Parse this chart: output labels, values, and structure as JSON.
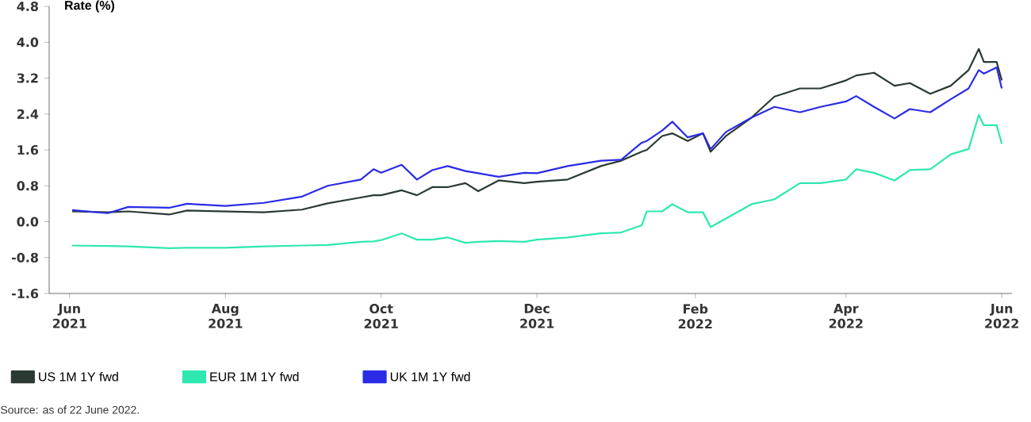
{
  "chart_data": {
    "type": "line",
    "ylabel": "Rate (%)",
    "x": [
      "2021-06-23",
      "2021-07-07",
      "2021-07-15",
      "2021-07-31",
      "2021-08-07",
      "2021-08-22",
      "2021-09-06",
      "2021-09-21",
      "2021-10-01",
      "2021-10-14",
      "2021-10-19",
      "2021-10-22",
      "2021-10-30",
      "2021-11-05",
      "2021-11-11",
      "2021-11-17",
      "2021-11-24",
      "2021-11-29",
      "2021-12-07",
      "2021-12-17",
      "2021-12-22",
      "2022-01-03",
      "2022-01-16",
      "2022-01-24",
      "2022-02-01",
      "2022-02-03",
      "2022-02-09",
      "2022-02-13",
      "2022-02-19",
      "2022-02-25",
      "2022-02-28",
      "2022-03-06",
      "2022-03-16",
      "2022-03-25",
      "2022-04-04",
      "2022-04-12",
      "2022-04-22",
      "2022-04-26",
      "2022-05-03",
      "2022-05-11",
      "2022-05-17",
      "2022-05-25",
      "2022-06-02",
      "2022-06-09",
      "2022-06-13",
      "2022-06-15",
      "2022-06-20",
      "2022-06-22"
    ],
    "series": [
      {
        "name": "US 1M 1Y fwd",
        "color": "#2b3a33",
        "values": [
          0.23,
          0.21,
          0.23,
          0.16,
          0.25,
          0.23,
          0.21,
          0.27,
          0.41,
          0.54,
          0.59,
          0.59,
          0.7,
          0.59,
          0.77,
          0.77,
          0.86,
          0.68,
          0.92,
          0.86,
          0.89,
          0.94,
          1.24,
          1.36,
          1.56,
          1.6,
          1.91,
          1.97,
          1.8,
          1.97,
          1.56,
          1.91,
          2.32,
          2.79,
          2.97,
          2.97,
          3.15,
          3.26,
          3.32,
          3.03,
          3.09,
          2.85,
          3.03,
          3.38,
          3.85,
          3.56,
          3.56,
          3.15
        ]
      },
      {
        "name": "EUR 1M 1Y fwd",
        "color": "#2ee8b0",
        "values": [
          -0.53,
          -0.54,
          -0.55,
          -0.59,
          -0.58,
          -0.58,
          -0.55,
          -0.53,
          -0.52,
          -0.45,
          -0.44,
          -0.41,
          -0.26,
          -0.4,
          -0.4,
          -0.35,
          -0.47,
          -0.45,
          -0.43,
          -0.45,
          -0.4,
          -0.35,
          -0.26,
          -0.24,
          -0.08,
          0.23,
          0.23,
          0.39,
          0.21,
          0.21,
          -0.12,
          0.07,
          0.39,
          0.5,
          0.86,
          0.86,
          0.94,
          1.17,
          1.09,
          0.92,
          1.15,
          1.17,
          1.5,
          1.62,
          2.38,
          2.15,
          2.15,
          1.74
        ]
      },
      {
        "name": "UK 1M 1Y fwd",
        "color": "#2b2be6",
        "values": [
          0.26,
          0.19,
          0.33,
          0.31,
          0.4,
          0.35,
          0.42,
          0.56,
          0.8,
          0.94,
          1.17,
          1.09,
          1.27,
          0.94,
          1.15,
          1.24,
          1.13,
          1.08,
          1.0,
          1.09,
          1.08,
          1.24,
          1.36,
          1.38,
          1.76,
          1.8,
          2.03,
          2.23,
          1.88,
          1.97,
          1.62,
          2.0,
          2.32,
          2.56,
          2.44,
          2.56,
          2.68,
          2.8,
          2.56,
          2.3,
          2.51,
          2.44,
          2.73,
          2.97,
          3.38,
          3.3,
          3.44,
          2.97
        ]
      }
    ],
    "xlim": [
      "2021-06-14",
      "2022-06-26"
    ],
    "xticks": [
      {
        "value": "2021-06-22",
        "label": "Jun 2021"
      },
      {
        "value": "2021-08-22",
        "label": "Aug 2021"
      },
      {
        "value": "2021-10-22",
        "label": "Oct 2021"
      },
      {
        "value": "2021-12-22",
        "label": "Dec 2021"
      },
      {
        "value": "2022-02-22",
        "label": "Feb 2022"
      },
      {
        "value": "2022-04-22",
        "label": "Apr 2022"
      },
      {
        "value": "2022-06-22",
        "label": "Jun 2022"
      }
    ],
    "ylim": [
      -1.6,
      4.8
    ],
    "yticks": [
      {
        "value": -1.6,
        "label": "-1.6"
      },
      {
        "value": -0.8,
        "label": "-0.8"
      },
      {
        "value": 0,
        "label": "0.0"
      },
      {
        "value": 0.8,
        "label": "0.8"
      },
      {
        "value": 1.6,
        "label": "1.6"
      },
      {
        "value": 2.4,
        "label": "2.4"
      },
      {
        "value": 3.2,
        "label": "3.2"
      },
      {
        "value": 4.0,
        "label": "4.0"
      },
      {
        "value": 4.8,
        "label": "4.8"
      }
    ],
    "legend": "bottom",
    "marker": "none",
    "line_style": "solid",
    "annotations": [
      "Source: as of 22 June 2022."
    ]
  }
}
